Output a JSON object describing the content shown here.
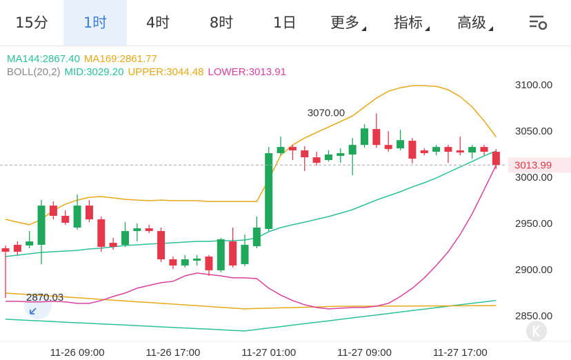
{
  "tabs": [
    "15分",
    "1时",
    "4时",
    "8时",
    "1日",
    "更多",
    "指标",
    "高级"
  ],
  "selected_tab_index": 1,
  "chart_data": {
    "type": "candlestick",
    "indicator_label": "BOLL(20,2)",
    "categories": [
      null,
      null,
      null,
      null,
      null,
      null,
      "11-26 09:00",
      null,
      null,
      null,
      null,
      null,
      null,
      null,
      "11-26 17:00",
      null,
      null,
      null,
      null,
      null,
      null,
      null,
      "11-27 01:00",
      null,
      null,
      null,
      null,
      null,
      null,
      null,
      "11-27 09:00",
      null,
      null,
      null,
      null,
      null,
      null,
      null,
      "11-27 17:00",
      null,
      null,
      null
    ],
    "open": [
      2923.9,
      2927.6,
      2926.9,
      2927.6,
      2970.1,
      2959.0,
      2946.3,
      2970.1,
      2955.2,
      2929.8,
      2927.6,
      2942.5,
      2945.5,
      2942.5,
      2911.9,
      2905.2,
      2910.4,
      2914.9,
      2900.0,
      2931.3,
      2906.7,
      2926.1,
      2944.8,
      3026.9,
      3033.6,
      3029.9,
      3022.4,
      3019.4,
      3023.9,
      3025.4,
      3035.8,
      3053.0,
      3035.8,
      3032.1,
      3040.3,
      3029.9,
      3028.4,
      3033.6,
      3029.9,
      3027.6,
      3033.6,
      3028.4
    ],
    "high": [
      2926.9,
      2931.3,
      2942.5,
      2976.1,
      2974.6,
      2964.9,
      2982.1,
      2976.1,
      2958.2,
      2935.1,
      2952.2,
      2950.7,
      2949.3,
      2946.3,
      2914.9,
      2916.4,
      2916.4,
      2916.4,
      2935.1,
      2946.3,
      2938.8,
      2958.2,
      3033.6,
      3044.8,
      3035.8,
      3034.3,
      3028.4,
      3029.9,
      3032.1,
      3043.3,
      3058.2,
      3070.0,
      3050.7,
      3052.2,
      3043.3,
      3032.1,
      3035.8,
      3035.8,
      3044.8,
      3035.8,
      3035.8,
      3031.3
    ],
    "low": [
      2870.03,
      2916.4,
      2923.9,
      2906.7,
      2955.2,
      2949.3,
      2944.0,
      2952.2,
      2920.1,
      2922.4,
      2925.4,
      2931.3,
      2940.3,
      2909.0,
      2901.5,
      2903.0,
      2905.2,
      2894.0,
      2897.8,
      2903.0,
      2904.5,
      2923.9,
      2942.5,
      3024.6,
      3019.4,
      3007.5,
      3013.4,
      3017.9,
      3016.4,
      3003.0,
      3032.8,
      3032.8,
      3028.4,
      3029.9,
      3015.7,
      3024.6,
      3024.6,
      3016.4,
      3024.6,
      3020.9,
      3024.6,
      3009.7
    ],
    "close": [
      2920.1,
      2920.1,
      2931.3,
      2970.1,
      2959.0,
      2951.5,
      2970.1,
      2955.2,
      2925.4,
      2925.4,
      2942.5,
      2945.5,
      2942.5,
      2911.9,
      2905.2,
      2911.9,
      2912.7,
      2900.0,
      2933.6,
      2905.2,
      2927.6,
      2946.3,
      3026.9,
      3033.6,
      3029.9,
      3022.4,
      3016.4,
      3025.4,
      3026.9,
      3035.8,
      3053.7,
      3035.8,
      3031.3,
      3041.0,
      3020.9,
      3026.9,
      3033.6,
      3028.4,
      3027.6,
      3033.6,
      3028.4,
      3013.99
    ],
    "up_color": "#1fa85c",
    "down_color": "#e5394b",
    "series": [
      {
        "name": "MA144:2867.40",
        "color": "#2bbf98",
        "values": [
          2847.0,
          2846.4,
          2845.7,
          2845.1,
          2844.5,
          2843.8,
          2843.2,
          2842.6,
          2841.9,
          2841.3,
          2840.7,
          2840.0,
          2839.4,
          2838.7,
          2838.1,
          2837.5,
          2836.8,
          2836.2,
          2835.6,
          2834.9,
          2834.3,
          2835.9,
          2837.5,
          2839.0,
          2840.6,
          2842.2,
          2843.8,
          2845.3,
          2846.9,
          2848.5,
          2850.1,
          2851.6,
          2853.2,
          2854.8,
          2856.4,
          2858.0,
          2859.5,
          2861.1,
          2862.7,
          2864.3,
          2865.8,
          2867.4
        ]
      },
      {
        "name": "MA169:2861.77",
        "color": "#e6a817",
        "values": [
          2875.4,
          2874.5,
          2873.7,
          2872.8,
          2872.0,
          2871.1,
          2870.2,
          2869.4,
          2868.5,
          2867.7,
          2866.8,
          2865.9,
          2865.1,
          2864.2,
          2863.4,
          2862.5,
          2861.6,
          2860.8,
          2859.9,
          2859.1,
          2858.2,
          2858.6,
          2858.9,
          2859.3,
          2859.6,
          2860.0,
          2860.3,
          2860.7,
          2861.0,
          2861.1,
          2861.1,
          2861.2,
          2861.2,
          2861.3,
          2861.3,
          2861.4,
          2861.4,
          2861.5,
          2861.5,
          2861.6,
          2861.7,
          2861.77
        ]
      },
      {
        "name": "MID:3029.20",
        "color": "#2bbf98",
        "values": [
          2914.9,
          2916.4,
          2917.9,
          2919.4,
          2920.1,
          2920.9,
          2921.6,
          2923.1,
          2923.9,
          2925.4,
          2926.9,
          2927.6,
          2928.4,
          2929.1,
          2929.8,
          2930.6,
          2931.3,
          2931.3,
          2932.1,
          2932.1,
          2932.8,
          2935.1,
          2941.8,
          2946.3,
          2949.3,
          2952.2,
          2955.2,
          2958.2,
          2961.9,
          2965.7,
          2970.9,
          2976.1,
          2980.6,
          2985.1,
          2990.3,
          2994.8,
          3000.0,
          3006.0,
          3011.9,
          3017.9,
          3023.9,
          3029.2
        ]
      },
      {
        "name": "UPPER:3044.48",
        "color": "#e6a817",
        "values": [
          2955.2,
          2952.2,
          2949.3,
          2955.2,
          2964.9,
          2971.6,
          2976.1,
          2979.1,
          2979.9,
          2978.4,
          2976.9,
          2976.1,
          2975.4,
          2976.1,
          2975.4,
          2975.4,
          2975.4,
          2974.6,
          2974.6,
          2974.6,
          2974.6,
          2974.6,
          2998.5,
          3024.6,
          3035.8,
          3043.3,
          3049.3,
          3055.2,
          3061.2,
          3067.2,
          3076.9,
          3086.6,
          3094.0,
          3097.8,
          3100.0,
          3100.0,
          3099.3,
          3095.5,
          3088.1,
          3076.9,
          3061.9,
          3044.48
        ]
      },
      {
        "name": "LOWER:3013.91",
        "color": "#d8409f",
        "values": [
          2866.4,
          2866.4,
          2865.7,
          2865.7,
          2866.4,
          2865.7,
          2864.2,
          2864.2,
          2867.2,
          2871.6,
          2875.4,
          2880.6,
          2883.6,
          2886.6,
          2888.1,
          2894.0,
          2897.0,
          2895.5,
          2894.0,
          2891.8,
          2891.8,
          2891.0,
          2880.6,
          2873.1,
          2867.2,
          2862.7,
          2859.7,
          2858.2,
          2858.9,
          2859.7,
          2859.7,
          2861.2,
          2864.2,
          2871.6,
          2880.6,
          2891.8,
          2905.2,
          2920.1,
          2938.8,
          2961.2,
          2987.3,
          3013.91
        ]
      }
    ],
    "annotations": [
      {
        "value": 3070.0,
        "label": "3070.00"
      },
      2870.03
    ],
    "ylim": [
      2823,
      3142
    ],
    "yticks": [
      {
        "value": 2850,
        "label": "2850.00"
      },
      {
        "value": 2900,
        "label": "2900.00"
      },
      {
        "value": 2950,
        "label": "2950.00"
      },
      {
        "value": 3000,
        "label": "3000.00"
      },
      {
        "value": 3050,
        "label": "3050.00"
      },
      {
        "value": 3100,
        "label": "3100.00"
      }
    ],
    "grid": false
  }
}
